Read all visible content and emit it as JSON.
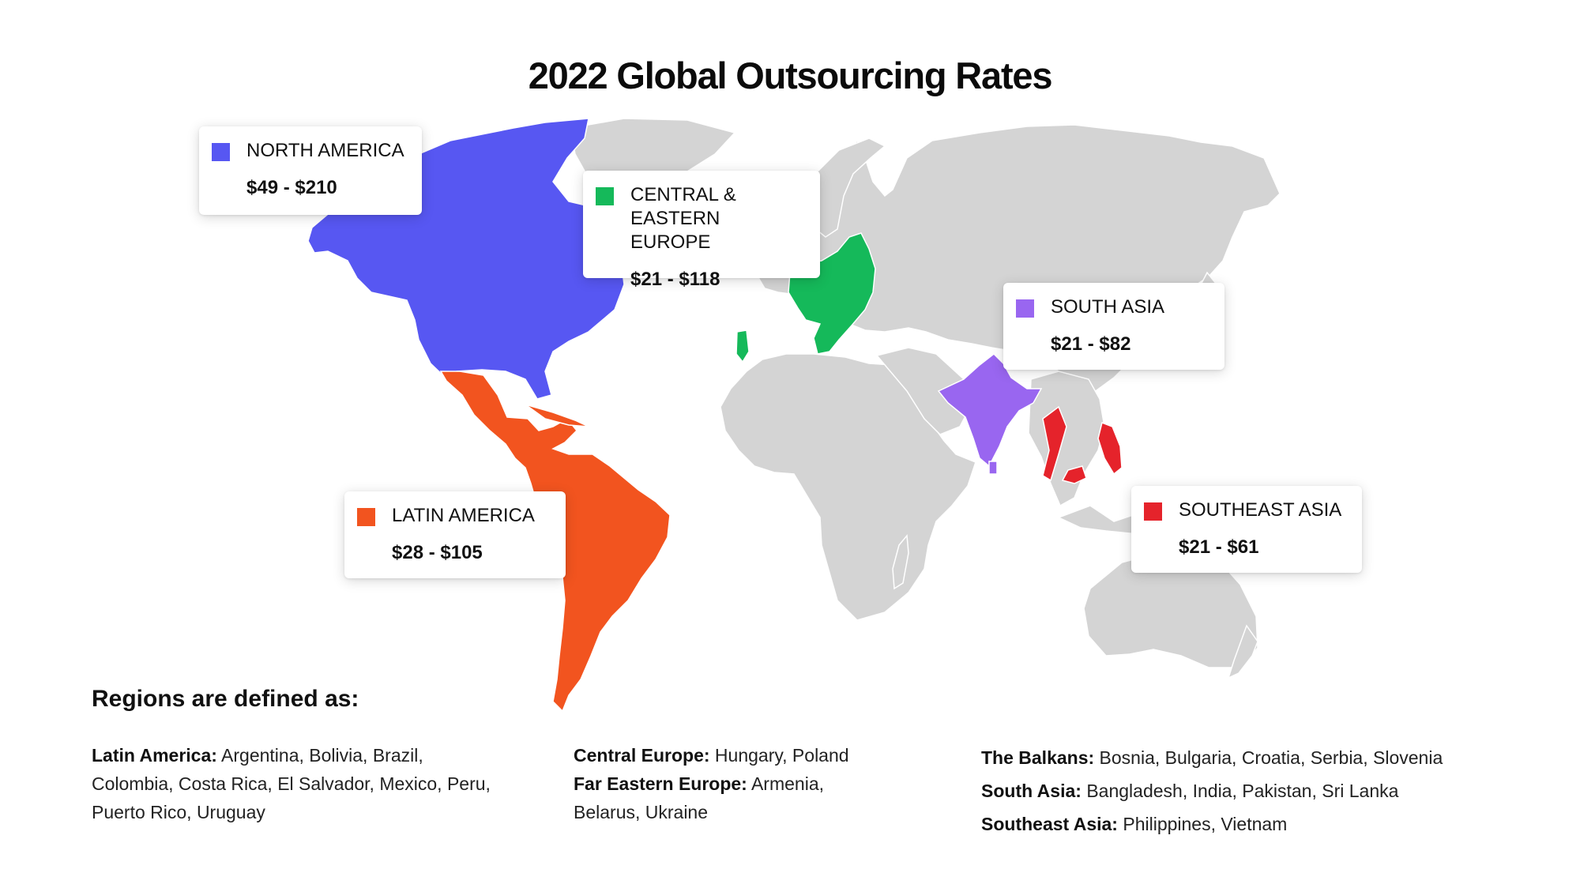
{
  "title": "2022 Global Outsourcing Rates",
  "colors": {
    "land": "#d4d4d4",
    "north_america": "#5757f2",
    "latin_america": "#f2541f",
    "europe": "#15b95a",
    "south_asia": "#9966f0",
    "southeast_asia": "#e5232b"
  },
  "regions": {
    "north_america": {
      "name": "NORTH AMERICA",
      "rate": "$49 - $210"
    },
    "europe": {
      "name": "CENTRAL &\nEASTERN EUROPE",
      "rate": "$21 - $118"
    },
    "south_asia": {
      "name": "SOUTH ASIA",
      "rate": "$21 - $82"
    },
    "latin_america": {
      "name": "LATIN AMERICA",
      "rate": "$28 - $105"
    },
    "southeast_asia": {
      "name": "SOUTHEAST ASIA",
      "rate": "$21 - $61"
    }
  },
  "definitions": {
    "heading": "Regions are defined as:",
    "latin_america": {
      "label": "Latin America:",
      "countries": "Argentina, Bolivia, Brazil, Colombia, Costa Rica, El Salvador, Mexico, Peru, Puerto Rico, Uruguay"
    },
    "central_europe": {
      "label": "Central Europe:",
      "countries": "Hungary, Poland"
    },
    "far_eastern_europe": {
      "label": "Far Eastern Europe:",
      "countries": "Armenia, Belarus, Ukraine"
    },
    "balkans": {
      "label": "The Balkans:",
      "countries": "Bosnia, Bulgaria, Croatia, Serbia, Slovenia"
    },
    "south_asia": {
      "label": "South Asia:",
      "countries": "Bangladesh, India, Pakistan, Sri Lanka"
    },
    "southeast_asia": {
      "label": "Southeast Asia:",
      "countries": "Philippines, Vietnam"
    }
  }
}
